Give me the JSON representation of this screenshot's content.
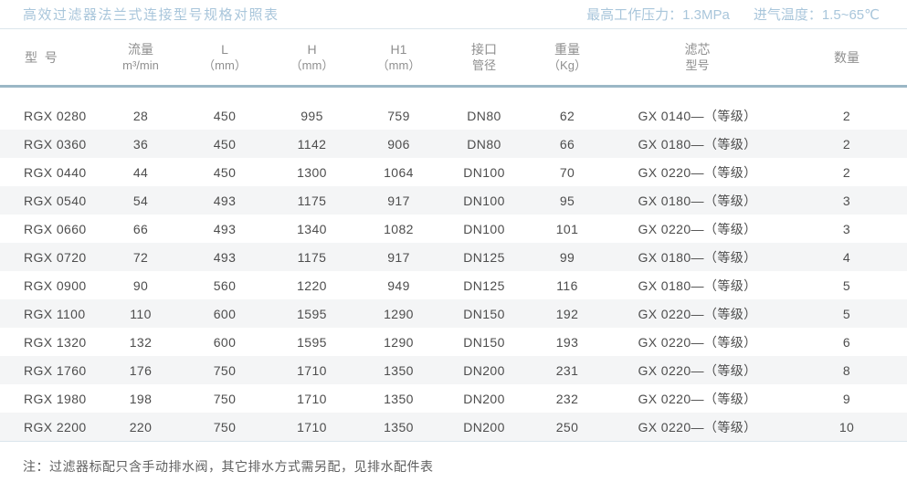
{
  "header": {
    "title": "高效过滤器法兰式连接型号规格对照表",
    "max_pressure": "最高工作压力：1.3MPa",
    "inlet_temp": "进气温度：1.5~65℃"
  },
  "table": {
    "columns": [
      {
        "key": "model",
        "line1": "型  号",
        "line2": ""
      },
      {
        "key": "flow",
        "line1": "流量",
        "line2": "m³/min"
      },
      {
        "key": "l",
        "line1": "L",
        "line2": "（mm）"
      },
      {
        "key": "h",
        "line1": "H",
        "line2": "（mm）"
      },
      {
        "key": "h1",
        "line1": "H1",
        "line2": "（mm）"
      },
      {
        "key": "port",
        "line1": "接口",
        "line2": "管径"
      },
      {
        "key": "weight",
        "line1": "重量",
        "line2": "（Kg）"
      },
      {
        "key": "element",
        "line1": "滤芯",
        "line2": "型号"
      },
      {
        "key": "qty",
        "line1": "数量",
        "line2": ""
      }
    ],
    "rows": [
      [
        "RGX 0280",
        "28",
        "450",
        "995",
        "759",
        "DN80",
        "62",
        "GX 0140—（等级）",
        "2"
      ],
      [
        "RGX 0360",
        "36",
        "450",
        "1142",
        "906",
        "DN80",
        "66",
        "GX 0180—（等级）",
        "2"
      ],
      [
        "RGX 0440",
        "44",
        "450",
        "1300",
        "1064",
        "DN100",
        "70",
        "GX 0220—（等级）",
        "2"
      ],
      [
        "RGX 0540",
        "54",
        "493",
        "1175",
        "917",
        "DN100",
        "95",
        "GX 0180—（等级）",
        "3"
      ],
      [
        "RGX 0660",
        "66",
        "493",
        "1340",
        "1082",
        "DN100",
        "101",
        "GX 0220—（等级）",
        "3"
      ],
      [
        "RGX 0720",
        "72",
        "493",
        "1175",
        "917",
        "DN125",
        "99",
        "GX 0180—（等级）",
        "4"
      ],
      [
        "RGX 0900",
        "90",
        "560",
        "1220",
        "949",
        "DN125",
        "116",
        "GX 0180—（等级）",
        "5"
      ],
      [
        "RGX 1100",
        "110",
        "600",
        "1595",
        "1290",
        "DN150",
        "192",
        "GX 0220—（等级）",
        "5"
      ],
      [
        "RGX 1320",
        "132",
        "600",
        "1595",
        "1290",
        "DN150",
        "193",
        "GX 0220—（等级）",
        "6"
      ],
      [
        "RGX 1760",
        "176",
        "750",
        "1710",
        "1350",
        "DN200",
        "231",
        "GX 0220—（等级）",
        "8"
      ],
      [
        "RGX 1980",
        "198",
        "750",
        "1710",
        "1350",
        "DN200",
        "232",
        "GX 0220—（等级）",
        "9"
      ],
      [
        "RGX 2200",
        "220",
        "750",
        "1710",
        "1350",
        "DN200",
        "250",
        "GX 0220—（等级）",
        "10"
      ]
    ]
  },
  "footer": {
    "note": "注：过滤器标配只含手动排水阀，其它排水方式需另配，见排水配件表"
  },
  "colors": {
    "accent": "#a9c6db",
    "thin_rule": "#dbe5ec",
    "header_rule": "#9bb7c6",
    "header_text": "#8f8f8f",
    "cell_text": "#4d4d4d",
    "stripe": "#f4f5f6",
    "note_text": "#5f5f5f"
  }
}
